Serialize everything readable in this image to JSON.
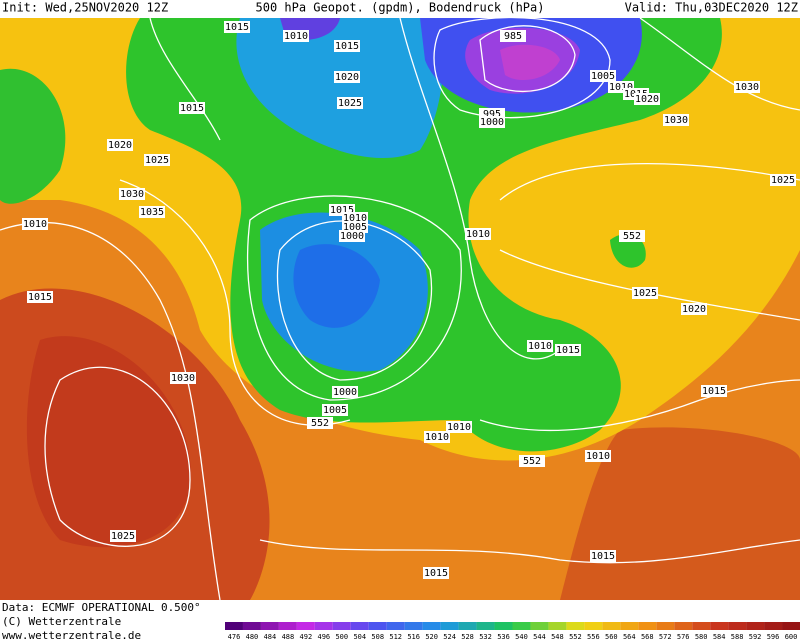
{
  "header": {
    "init": "Init: Wed,25NOV2020 12Z",
    "title": "500 hPa Geopot. (gpdm), Bodendruck (hPa)",
    "valid": "Valid: Thu,03DEC2020 12Z"
  },
  "footer": {
    "data": "Data: ECMWF OPERATIONAL 0.500°",
    "copyright": "(C) Wetterzentrale",
    "url": "www.wetterzentrale.de"
  },
  "legend": {
    "values": [
      476,
      480,
      484,
      488,
      492,
      496,
      500,
      504,
      508,
      512,
      516,
      520,
      524,
      528,
      532,
      536,
      540,
      544,
      548,
      552,
      556,
      560,
      564,
      568,
      572,
      576,
      580,
      584,
      588,
      592,
      596,
      600
    ]
  },
  "map_labels": [
    "1015",
    "1010",
    "1015",
    "1020",
    "1025",
    "1015",
    "985",
    "995",
    "1000",
    "1005",
    "1010",
    "1015",
    "1020",
    "1030",
    "1030",
    "1020",
    "1025",
    "1025",
    "1030",
    "1035",
    "1010",
    "1015",
    "1010",
    "1005",
    "1000",
    "1010",
    "552",
    "1015",
    "1025",
    "1020",
    "1010",
    "1015",
    "1030",
    "1015",
    "1000",
    "1005",
    "552",
    "1010",
    "1010",
    "552",
    "1010",
    "1025",
    "1015",
    "1015"
  ]
}
